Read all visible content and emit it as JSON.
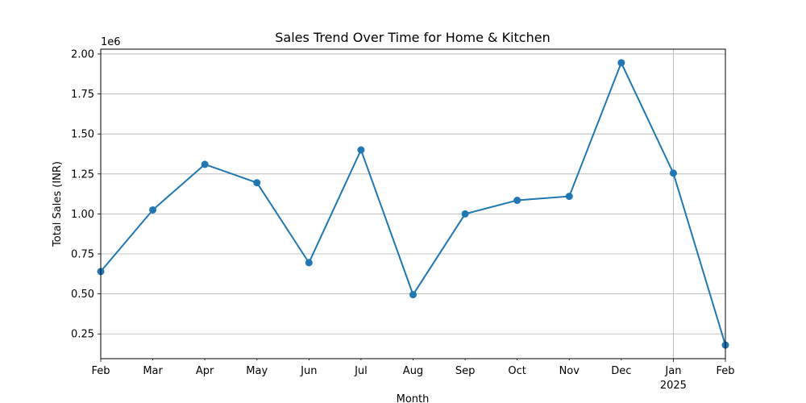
{
  "chart_data": {
    "type": "line",
    "title": "Sales Trend Over Time for Home & Kitchen",
    "xlabel": "Month",
    "ylabel": "Total Sales (INR)",
    "y_offset_label": "1e6",
    "categories": [
      "Feb",
      "Mar",
      "Apr",
      "May",
      "Jun",
      "Jul",
      "Aug",
      "Sep",
      "Oct",
      "Nov",
      "Dec",
      "Jan",
      "Feb"
    ],
    "year_labels": [
      "",
      "",
      "",
      "",
      "",
      "",
      "",
      "",
      "",
      "",
      "",
      "2025",
      ""
    ],
    "y_ticks": [
      "0.25",
      "0.50",
      "0.75",
      "1.00",
      "1.25",
      "1.50",
      "1.75",
      "2.00"
    ],
    "y_tick_values": [
      250000,
      500000,
      750000,
      1000000,
      1250000,
      1500000,
      1750000,
      2000000
    ],
    "ylim": [
      95000,
      2030000
    ],
    "series": [
      {
        "values": [
          640000,
          1025000,
          1310000,
          1195000,
          695000,
          1400000,
          495000,
          1000000,
          1085000,
          1110000,
          1945000,
          1255000,
          180000
        ]
      }
    ],
    "grid": "horizontal major lines, one vertical line at Jan 2025",
    "line_color": "#1f77b4"
  }
}
